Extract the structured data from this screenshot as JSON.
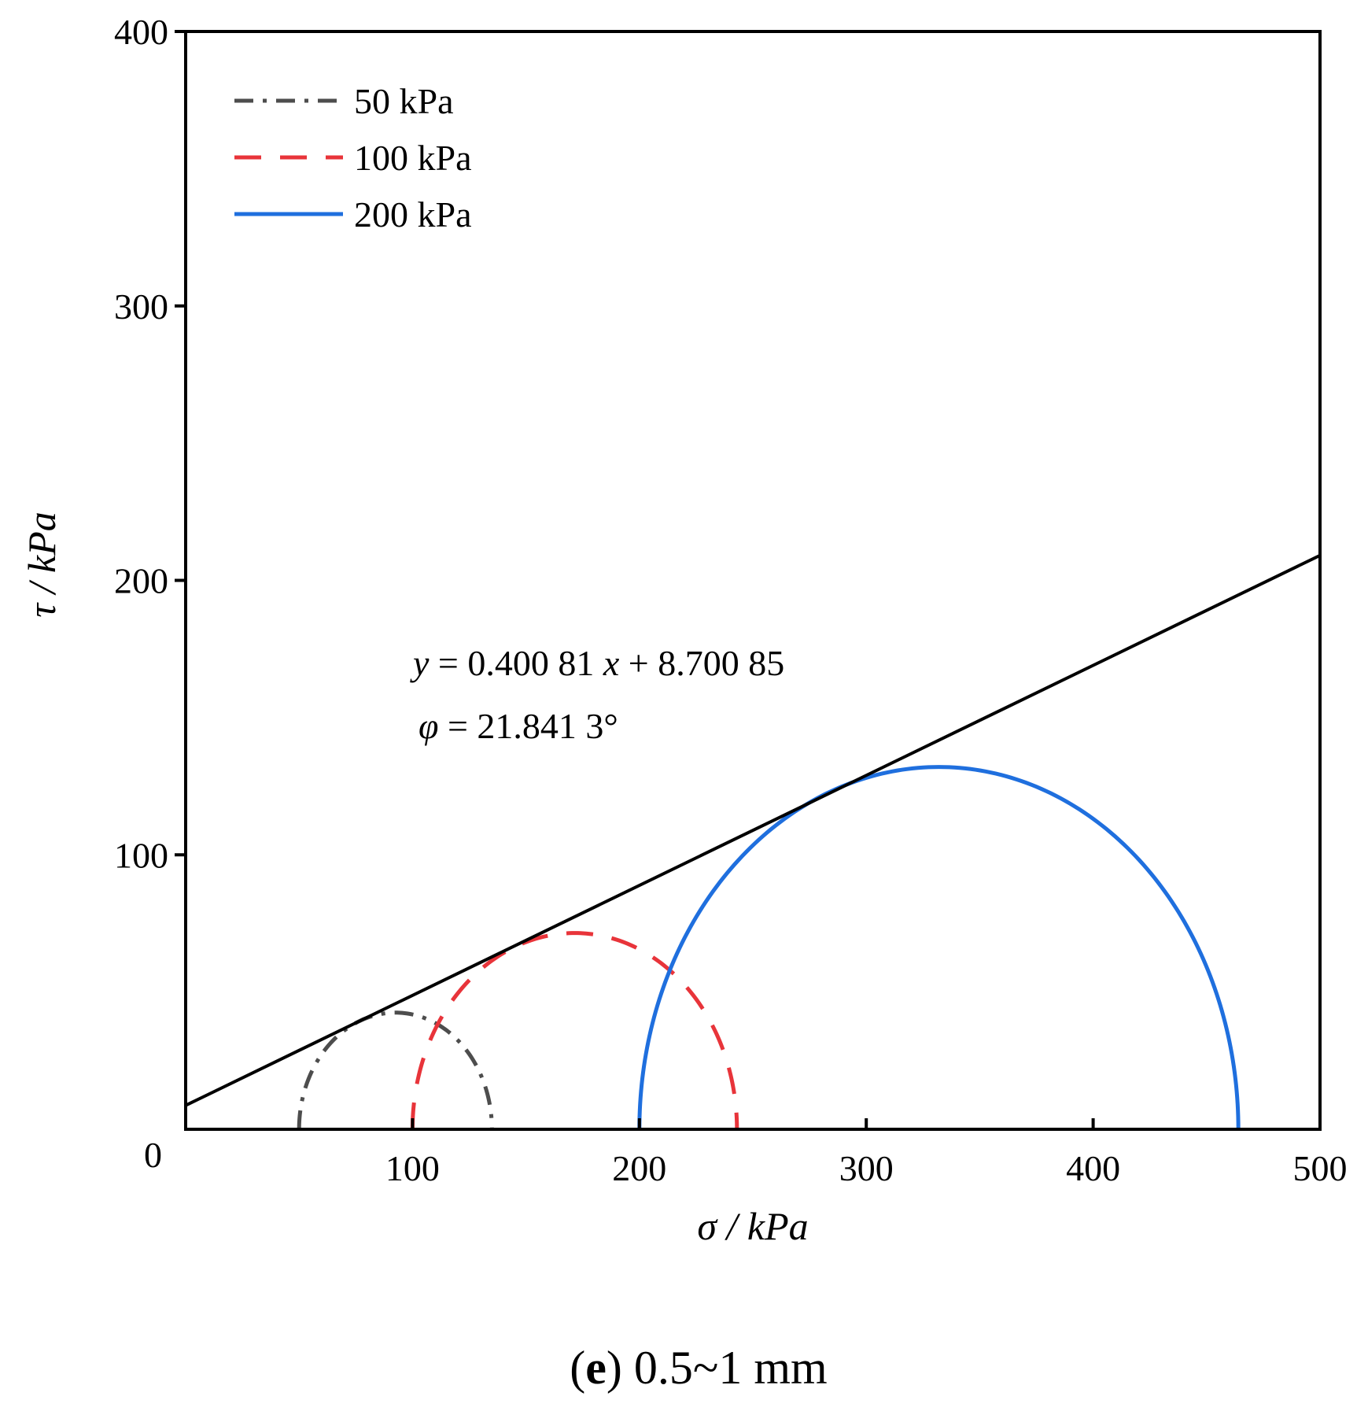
{
  "chart_data": {
    "type": "line",
    "title": "",
    "xlabel": "σ / kPa",
    "ylabel": "τ / kPa",
    "xlim": [
      0,
      500
    ],
    "ylim": [
      0,
      400
    ],
    "x_ticks": [
      100,
      200,
      300,
      400,
      500
    ],
    "y_ticks": [
      100,
      200,
      300,
      400
    ],
    "x_tick_labels": [
      "100",
      "200",
      "300",
      "400",
      "500"
    ],
    "y_tick_labels": [
      "100",
      "200",
      "300",
      "400"
    ],
    "origin_label": "0",
    "grid": false,
    "legend_position": "top-left",
    "series": [
      {
        "name": "50 kPa",
        "kind": "mohr-circle",
        "sigma3": 50,
        "sigma1": 135,
        "color": "#4d4d4d",
        "style": "dash-dot"
      },
      {
        "name": "100 kPa",
        "kind": "mohr-circle",
        "sigma3": 100,
        "sigma1": 243,
        "color": "#e8343a",
        "style": "dashed"
      },
      {
        "name": "200 kPa",
        "kind": "mohr-circle",
        "sigma3": 200,
        "sigma1": 464,
        "color": "#1f6fde",
        "style": "solid"
      }
    ],
    "envelope": {
      "slope": 0.40081,
      "intercept": 8.70085,
      "color": "#000000"
    },
    "annotations": {
      "equation": {
        "lhs_var": "y",
        "rhs_before": " = 0.400 81 ",
        "x_var": "x",
        "rhs_after": " + 8.700 85"
      },
      "angle": {
        "var": "φ",
        "rhs": " = 21.841 3°"
      }
    }
  },
  "caption": {
    "letter": "(e)",
    "letter_bold": "e",
    "text": " 0.5~1 mm"
  }
}
